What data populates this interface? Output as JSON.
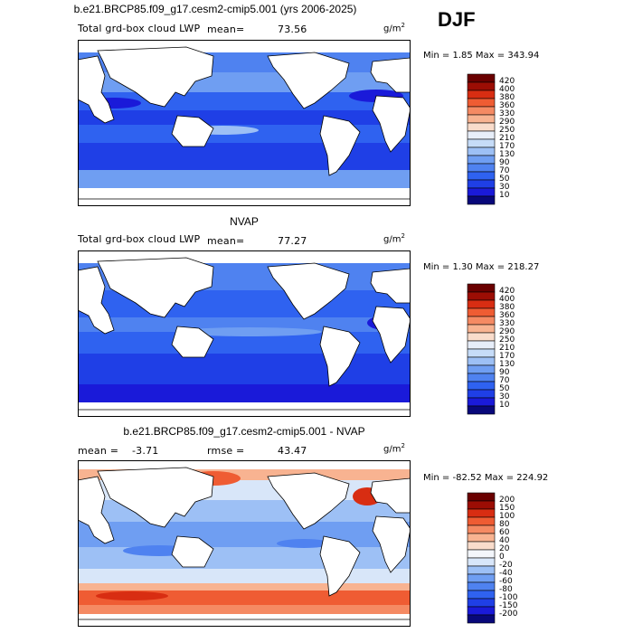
{
  "season": "DJF",
  "colorbars": {
    "abs": {
      "levels": [
        "10",
        "30",
        "50",
        "70",
        "90",
        "130",
        "170",
        "210",
        "250",
        "290",
        "330",
        "360",
        "380",
        "400",
        "420"
      ],
      "colors": [
        "#08087a",
        "#1a1ad9",
        "#1f3fe6",
        "#2f62f0",
        "#4f82f0",
        "#6f9ef2",
        "#9dc0f5",
        "#c6dcf8",
        "#e7eef9",
        "#f9dccb",
        "#f8b391",
        "#f58a63",
        "#ef5c33",
        "#d82d12",
        "#9c0d04",
        "#6a0000"
      ]
    },
    "diff": {
      "levels": [
        "-200",
        "-150",
        "-100",
        "-80",
        "-60",
        "-40",
        "-20",
        "0",
        "20",
        "40",
        "60",
        "80",
        "100",
        "150",
        "200"
      ],
      "colors": [
        "#08087a",
        "#1a1ad9",
        "#1f3fe6",
        "#2f62f0",
        "#4f82f0",
        "#6f9ef2",
        "#9dc0f5",
        "#d8e6f9",
        "#f3f6fb",
        "#f9dccb",
        "#f8b391",
        "#f58a63",
        "#ef5c33",
        "#d82d12",
        "#9c0d04",
        "#6a0000"
      ]
    }
  },
  "panels": [
    {
      "title": "b.e21.BRCP85.f09_g17.cesm2-cmip5.001 (yrs 2006-2025)",
      "subtitle": "Total grd-box cloud LWP",
      "mean_label": "mean=",
      "mean_value": "73.56",
      "rmse_label": "",
      "rmse_value": "",
      "units": "g/m",
      "units_exp": "2",
      "minmax": "Min =   1.85 Max = 343.94"
    },
    {
      "title": "NVAP",
      "subtitle": "Total grd-box cloud LWP",
      "mean_label": "mean=",
      "mean_value": "77.27",
      "rmse_label": "",
      "rmse_value": "",
      "units": "g/m",
      "units_exp": "2",
      "minmax": "Min =   1.30 Max = 218.27"
    },
    {
      "title": "b.e21.BRCP85.f09_g17.cesm2-cmip5.001 - NVAP",
      "subtitle": "",
      "mean_label": "mean =",
      "mean_value": "-3.71",
      "rmse_label": "rmse =",
      "rmse_value": "43.47",
      "units": "g/m",
      "units_exp": "2",
      "minmax": "Min = -82.52 Max = 224.92"
    }
  ],
  "chart_data": [
    {
      "type": "heatmap",
      "title": "b.e21.BRCP85.f09_g17.cesm2-cmip5.001 (yrs 2006-2025)",
      "field": "Total grd-box cloud LWP",
      "units": "g/m2",
      "mean": 73.56,
      "min": 1.85,
      "max": 343.94,
      "colorbar_levels": [
        10,
        30,
        50,
        70,
        90,
        130,
        170,
        210,
        250,
        290,
        330,
        360,
        380,
        400,
        420
      ],
      "x": "longitude (map, Pacific-centered)",
      "y": "latitude"
    },
    {
      "type": "heatmap",
      "title": "NVAP",
      "field": "Total grd-box cloud LWP",
      "units": "g/m2",
      "mean": 77.27,
      "min": 1.3,
      "max": 218.27,
      "colorbar_levels": [
        10,
        30,
        50,
        70,
        90,
        130,
        170,
        210,
        250,
        290,
        330,
        360,
        380,
        400,
        420
      ]
    },
    {
      "type": "heatmap",
      "title": "b.e21.BRCP85.f09_g17.cesm2-cmip5.001 - NVAP",
      "units": "g/m2",
      "mean": -3.71,
      "rmse": 43.47,
      "min": -82.52,
      "max": 224.92,
      "colorbar_levels": [
        -200,
        -150,
        -100,
        -80,
        -60,
        -40,
        -20,
        0,
        20,
        40,
        60,
        80,
        100,
        150,
        200
      ]
    }
  ]
}
